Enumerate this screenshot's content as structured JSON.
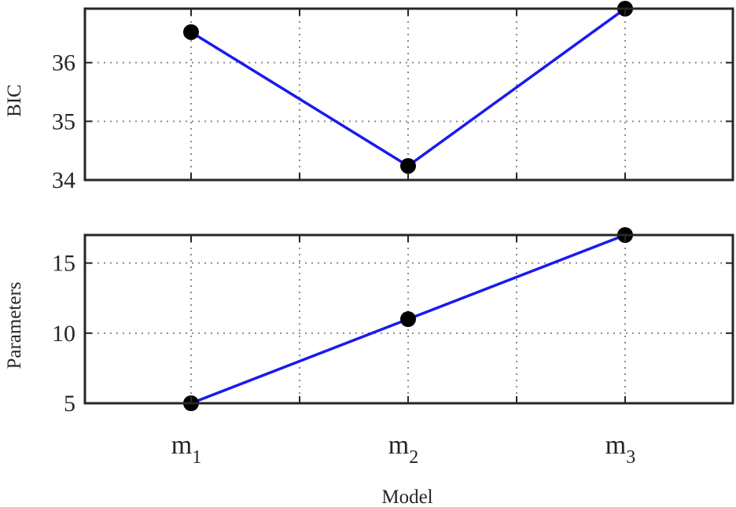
{
  "chart_data": [
    {
      "type": "line",
      "categories": [
        "m",
        "m",
        "m"
      ],
      "category_subscripts": [
        "1",
        "2",
        "3"
      ],
      "series": [
        {
          "values": [
            36.52,
            34.24,
            36.92
          ]
        }
      ],
      "ylabel": "BIC",
      "xlabel": "",
      "ylim": [
        34,
        36.92
      ],
      "yticks": [
        34,
        35,
        36
      ],
      "ytick_labels": [
        "34",
        "35",
        "36"
      ],
      "grid": true,
      "line_color": "#1a1aee",
      "marker_color": "#000000"
    },
    {
      "type": "line",
      "categories": [
        "m",
        "m",
        "m"
      ],
      "category_subscripts": [
        "1",
        "2",
        "3"
      ],
      "series": [
        {
          "values": [
            5,
            11,
            17
          ]
        }
      ],
      "ylabel": "Parameters",
      "xlabel": "Model",
      "ylim": [
        5,
        17
      ],
      "yticks": [
        5,
        10,
        15
      ],
      "ytick_labels": [
        "5",
        "10",
        "15"
      ],
      "grid": true,
      "line_color": "#1a1aee",
      "marker_color": "#000000"
    }
  ]
}
